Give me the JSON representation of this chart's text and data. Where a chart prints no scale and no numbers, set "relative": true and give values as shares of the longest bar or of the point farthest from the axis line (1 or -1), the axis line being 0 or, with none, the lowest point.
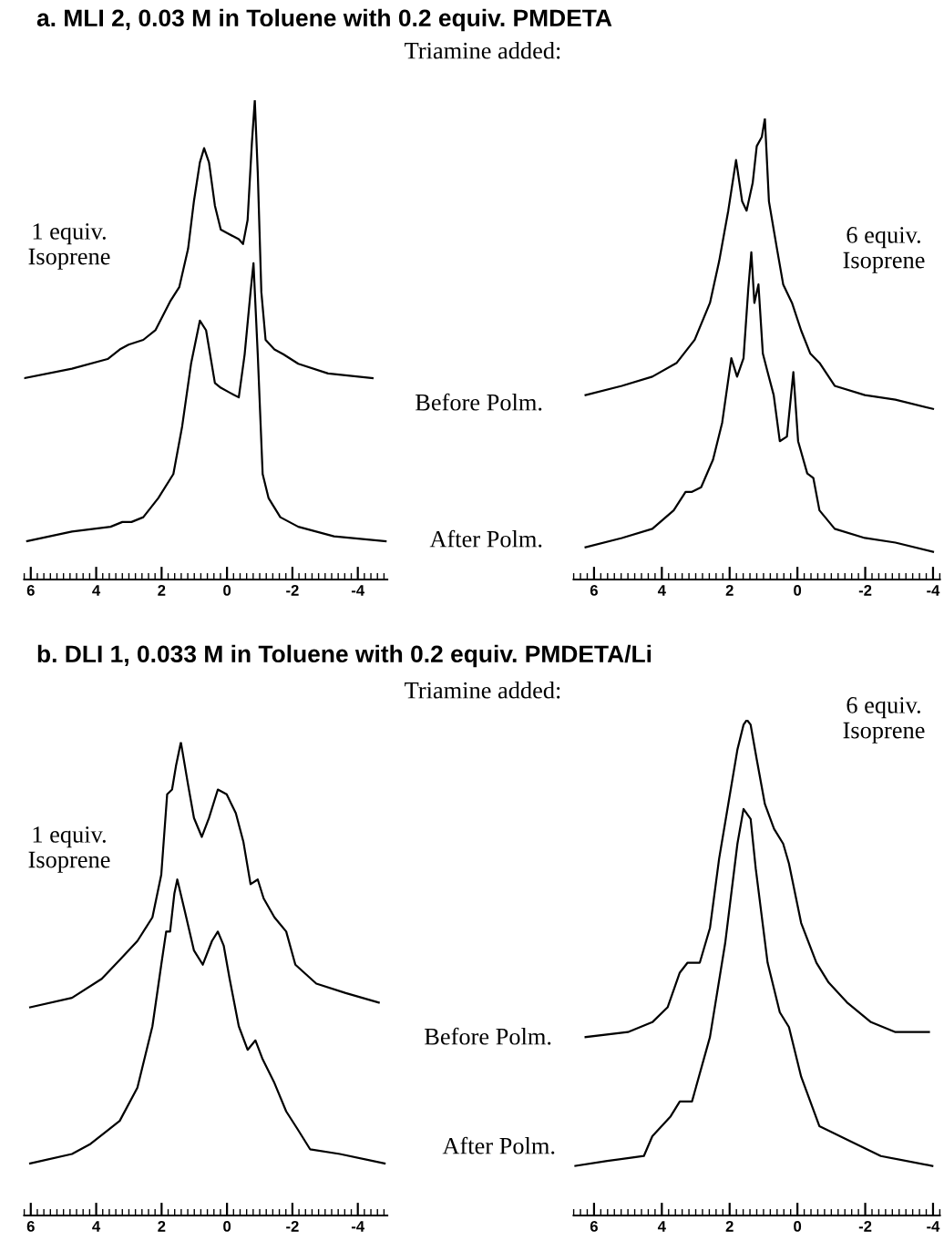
{
  "chart_data": [
    {
      "type": "line",
      "title": "a. MLI 2, 0.03 M in Toluene with 0.2 equiv. PMDETA",
      "relative": true,
      "xlim": [
        6.2,
        -4.9
      ],
      "xticks": [
        6,
        4,
        2,
        0,
        -2,
        -4
      ],
      "annotations": [
        "Triamine added:",
        "1 equiv.\nIsoprene"
      ],
      "series": [
        {
          "color": "#000000",
          "x": [
            6.2,
            4.74,
            3.65,
            3.28,
            3.01,
            2.56,
            2.19,
            1.74,
            1.46,
            1.19,
            1.01,
            0.83,
            0.7,
            0.55,
            0.37,
            0.19,
            -0.08,
            -0.36,
            -0.49,
            -0.63,
            -0.76,
            -0.85,
            -0.94,
            -1.05,
            -1.18,
            -1.45,
            -1.72,
            -2.18,
            -3.09,
            -4.45
          ],
          "values": [
            0.42,
            0.44,
            0.46,
            0.48,
            0.49,
            0.5,
            0.52,
            0.58,
            0.61,
            0.69,
            0.79,
            0.87,
            0.9,
            0.87,
            0.78,
            0.73,
            0.72,
            0.71,
            0.7,
            0.75,
            0.91,
            1.0,
            0.85,
            0.6,
            0.5,
            0.48,
            0.47,
            0.45,
            0.43,
            0.42
          ]
        },
        {
          "color": "#000000",
          "x": [
            6.11,
            4.74,
            3.56,
            3.2,
            2.92,
            2.56,
            2.1,
            1.64,
            1.37,
            1.1,
            0.83,
            0.64,
            0.37,
            0.19,
            -0.08,
            -0.36,
            -0.54,
            -0.72,
            -0.81,
            -0.94,
            -1.09,
            -1.27,
            -1.63,
            -2.18,
            -3.27,
            -4.85
          ],
          "values": [
            0.08,
            0.1,
            0.11,
            0.12,
            0.12,
            0.13,
            0.17,
            0.22,
            0.32,
            0.45,
            0.54,
            0.52,
            0.41,
            0.4,
            0.39,
            0.38,
            0.47,
            0.6,
            0.66,
            0.47,
            0.22,
            0.17,
            0.13,
            0.11,
            0.09,
            0.08
          ]
        }
      ]
    },
    {
      "type": "line",
      "relative": true,
      "xlim": [
        6.6,
        -4.2
      ],
      "xticks": [
        6,
        4,
        2,
        0,
        -2,
        -4
      ],
      "annotations": [
        "6 equiv.\nIsoprene"
      ],
      "series": [
        {
          "name": "Before Polm.",
          "color": "#000000",
          "x": [
            6.25,
            5.18,
            4.28,
            3.56,
            3.03,
            2.58,
            2.31,
            2.04,
            1.81,
            1.63,
            1.5,
            1.32,
            1.2,
            1.05,
            0.96,
            0.84,
            0.61,
            0.42,
            0.16,
            -0.11,
            -0.38,
            -0.65,
            -1.1,
            -1.99,
            -2.89,
            -4.0
          ],
          "values": [
            0.4,
            0.42,
            0.44,
            0.47,
            0.52,
            0.6,
            0.69,
            0.8,
            0.91,
            0.82,
            0.8,
            0.86,
            0.94,
            0.96,
            1.0,
            0.82,
            0.72,
            0.64,
            0.6,
            0.54,
            0.49,
            0.47,
            0.42,
            0.4,
            0.39,
            0.37
          ]
        },
        {
          "name": "After Polm.",
          "color": "#000000",
          "x": [
            6.25,
            5.18,
            4.28,
            3.65,
            3.3,
            3.11,
            2.84,
            2.49,
            2.22,
            1.95,
            1.78,
            1.59,
            1.45,
            1.36,
            1.27,
            1.15,
            1.02,
            0.88,
            0.7,
            0.52,
            0.31,
            0.12,
            -0.02,
            -0.29,
            -0.47,
            -0.65,
            -1.1,
            -1.99,
            -2.89,
            -4.0
          ],
          "values": [
            0.07,
            0.09,
            0.11,
            0.15,
            0.19,
            0.19,
            0.2,
            0.26,
            0.34,
            0.48,
            0.44,
            0.48,
            0.63,
            0.71,
            0.6,
            0.64,
            0.49,
            0.45,
            0.4,
            0.3,
            0.31,
            0.45,
            0.3,
            0.23,
            0.22,
            0.15,
            0.11,
            0.09,
            0.08,
            0.06
          ]
        }
      ]
    },
    {
      "type": "line",
      "title": "b. DLI 1, 0.033 M in Toluene with 0.2 equiv. PMDETA/Li",
      "relative": true,
      "xlim": [
        6.2,
        -4.9
      ],
      "xticks": [
        6,
        4,
        2,
        0,
        -2,
        -4
      ],
      "annotations": [
        "Triamine added:",
        "1 equiv.\nIsoprene"
      ],
      "series": [
        {
          "color": "#000000",
          "x": [
            6.02,
            4.74,
            3.83,
            3.28,
            2.74,
            2.28,
            2.01,
            1.83,
            1.68,
            1.56,
            1.41,
            1.19,
            1.01,
            0.77,
            0.55,
            0.28,
            0.01,
            -0.27,
            -0.5,
            -0.72,
            -0.94,
            -1.12,
            -1.45,
            -1.81,
            -2.09,
            -2.73,
            -3.63,
            -4.64
          ],
          "values": [
            0.44,
            0.46,
            0.5,
            0.54,
            0.58,
            0.63,
            0.72,
            0.89,
            0.9,
            0.95,
            1.0,
            0.91,
            0.84,
            0.8,
            0.84,
            0.9,
            0.89,
            0.85,
            0.79,
            0.7,
            0.71,
            0.67,
            0.63,
            0.6,
            0.53,
            0.49,
            0.47,
            0.45
          ]
        },
        {
          "color": "#000000",
          "x": [
            6.02,
            4.74,
            4.2,
            3.65,
            3.28,
            2.74,
            2.28,
            2.01,
            1.86,
            1.74,
            1.61,
            1.52,
            1.28,
            1.01,
            0.74,
            0.46,
            0.28,
            0.1,
            -0.08,
            -0.36,
            -0.63,
            -0.87,
            -1.09,
            -1.45,
            -1.81,
            -2.18,
            -2.54,
            -3.45,
            -4.82
          ],
          "values": [
            0.11,
            0.13,
            0.15,
            0.18,
            0.2,
            0.27,
            0.4,
            0.53,
            0.6,
            0.6,
            0.68,
            0.71,
            0.64,
            0.56,
            0.53,
            0.58,
            0.6,
            0.57,
            0.5,
            0.4,
            0.35,
            0.37,
            0.33,
            0.28,
            0.22,
            0.18,
            0.14,
            0.13,
            0.11
          ]
        }
      ]
    },
    {
      "type": "line",
      "relative": true,
      "xlim": [
        6.6,
        -4.2
      ],
      "xticks": [
        6,
        4,
        2,
        0,
        -2,
        -4
      ],
      "annotations": [
        "6 equiv.\nIsoprene"
      ],
      "series": [
        {
          "name": "Before Polm.",
          "color": "#000000",
          "x": [
            6.25,
            5.0,
            4.28,
            3.83,
            3.47,
            3.24,
            2.88,
            2.58,
            2.31,
            2.04,
            1.77,
            1.59,
            1.49,
            1.38,
            1.2,
            0.96,
            0.69,
            0.42,
            0.25,
            -0.11,
            -0.56,
            -0.92,
            -1.46,
            -2.17,
            -2.89,
            -3.88
          ],
          "values": [
            0.36,
            0.37,
            0.39,
            0.42,
            0.49,
            0.51,
            0.51,
            0.58,
            0.72,
            0.83,
            0.94,
            0.99,
            1.0,
            0.99,
            0.92,
            0.83,
            0.78,
            0.75,
            0.71,
            0.59,
            0.51,
            0.47,
            0.43,
            0.39,
            0.37,
            0.37
          ]
        },
        {
          "name": "After Polm.",
          "color": "#000000",
          "x": [
            6.55,
            5.61,
            4.53,
            4.28,
            3.74,
            3.47,
            3.11,
            2.58,
            2.13,
            1.77,
            1.59,
            1.38,
            1.23,
            0.88,
            0.52,
            0.25,
            -0.11,
            -0.65,
            -1.56,
            -2.46,
            -3.98
          ],
          "values": [
            0.1,
            0.11,
            0.12,
            0.16,
            0.2,
            0.23,
            0.23,
            0.36,
            0.55,
            0.75,
            0.82,
            0.8,
            0.7,
            0.51,
            0.41,
            0.38,
            0.28,
            0.18,
            0.15,
            0.12,
            0.1
          ]
        }
      ]
    }
  ]
}
